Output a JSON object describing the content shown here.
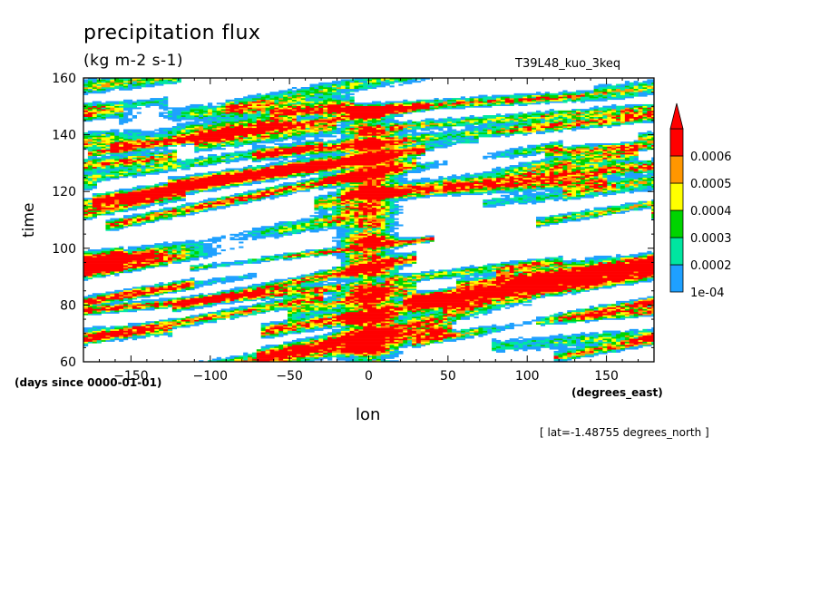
{
  "chart_data": {
    "type": "heatmap",
    "title": "precipitation flux",
    "units": "(kg m-2 s-1)",
    "run_name": "T39L48_kuo_3keq",
    "xlabel": "lon",
    "xunits": "(degrees_east)",
    "ylabel": "time",
    "yunits": "(days since 0000-01-01)",
    "note": "[ lat=-1.48755 degrees_north ]",
    "xlim": [
      -180,
      180
    ],
    "ylim": [
      60,
      160
    ],
    "xticks": [
      -150,
      -100,
      -50,
      0,
      50,
      100,
      150
    ],
    "yticks": [
      60,
      80,
      100,
      120,
      140,
      160
    ],
    "xtick_labels": [
      "−150",
      "−100",
      "−50",
      "0",
      "50",
      "100",
      "150"
    ],
    "ytick_labels": [
      "60",
      "80",
      "100",
      "120",
      "140",
      "160"
    ],
    "colorbar": {
      "levels": [
        0.0001,
        0.0002,
        0.0003,
        0.0004,
        0.0005,
        0.0006
      ],
      "labels": [
        "1e-04",
        "0.0002",
        "0.0003",
        "0.0004",
        "0.0005",
        "0.0006"
      ],
      "colors": [
        "#1ea0ff",
        "#00e6a0",
        "#00d400",
        "#ffff00",
        "#ff9600",
        "#ff0000"
      ],
      "extend": "max"
    },
    "features": [
      {
        "lon": 0,
        "time_range": [
          60,
          150
        ],
        "description": "persistent high precipitation near 0 lon"
      },
      {
        "lon_range": [
          -180,
          180
        ],
        "time_range": [
          60,
          160
        ],
        "description": "eastward-propagating streaks"
      }
    ]
  }
}
